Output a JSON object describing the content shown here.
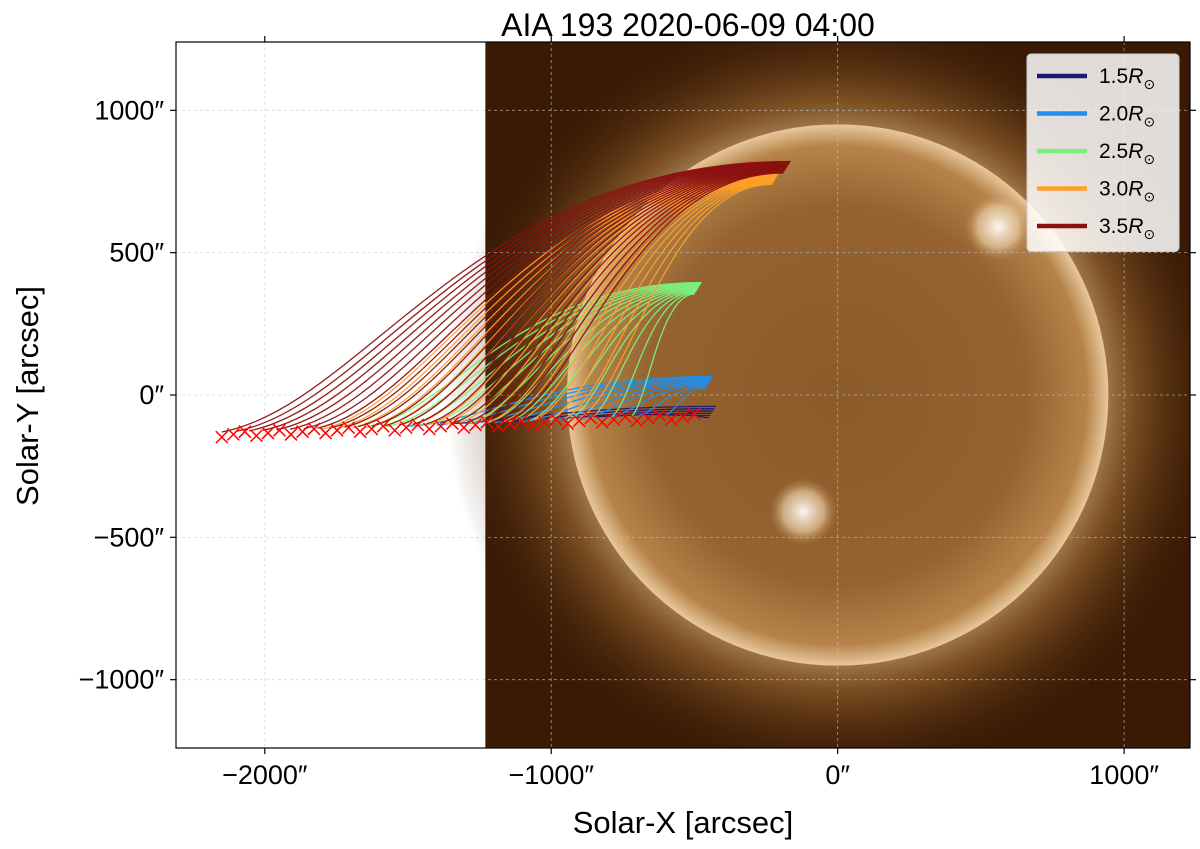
{
  "chart_data": {
    "type": "line",
    "title": "AIA 193 2020-06-09 04:00",
    "xlabel": "Solar-X [arcsec]",
    "ylabel": "Solar-Y [arcsec]",
    "xlim": [
      -2310,
      1230
    ],
    "ylim": [
      -1240,
      1240
    ],
    "xticks": [
      -2000,
      -1000,
      0,
      1000
    ],
    "yticks": [
      -1000,
      -500,
      0,
      500,
      1000
    ],
    "xtick_labels": [
      "−2000″",
      "−1000″",
      "0″",
      "1000″"
    ],
    "ytick_labels": [
      "−1000″",
      "−500″",
      "0″",
      "500″",
      "1000″"
    ],
    "image": {
      "xrange": [
        -1230,
        1230
      ],
      "yrange": [
        -1240,
        1240
      ],
      "disk_radius_arcsec": 945,
      "disk_center": [
        0,
        0
      ],
      "bright_regions": [
        [
          -120,
          -410
        ],
        [
          560,
          590
        ]
      ]
    },
    "legend_position": "upper right",
    "grid": true,
    "series": [
      {
        "name": "1.5R",
        "color": "#191970",
        "end": [
          -450,
          -40
        ],
        "start_x_range": [
          -1350,
          -520
        ],
        "start_y": -100,
        "lines": 6
      },
      {
        "name": "2.0R",
        "color": "#1e8ff0",
        "end": [
          -460,
          65
        ],
        "start_x_range": [
          -1500,
          -600
        ],
        "start_y": -110,
        "lines": 10
      },
      {
        "name": "2.5R",
        "color": "#7cf07c",
        "end": [
          -500,
          395
        ],
        "start_x_range": [
          -1650,
          -720
        ],
        "start_y": -115,
        "lines": 14
      },
      {
        "name": "3.0R",
        "color": "#ffa028",
        "end": [
          -230,
          780
        ],
        "start_x_range": [
          -1800,
          -900
        ],
        "start_y": -120,
        "lines": 18
      },
      {
        "name": "3.5R",
        "color": "#8b1010",
        "end": [
          -190,
          820
        ],
        "start_x_range": [
          -2150,
          -1150
        ],
        "start_y": -130,
        "lines": 22
      }
    ],
    "markers": {
      "symbol": "x",
      "color": "#ff0000",
      "x_range": [
        -2150,
        -500
      ],
      "y_range": [
        -140,
        -75
      ]
    }
  }
}
